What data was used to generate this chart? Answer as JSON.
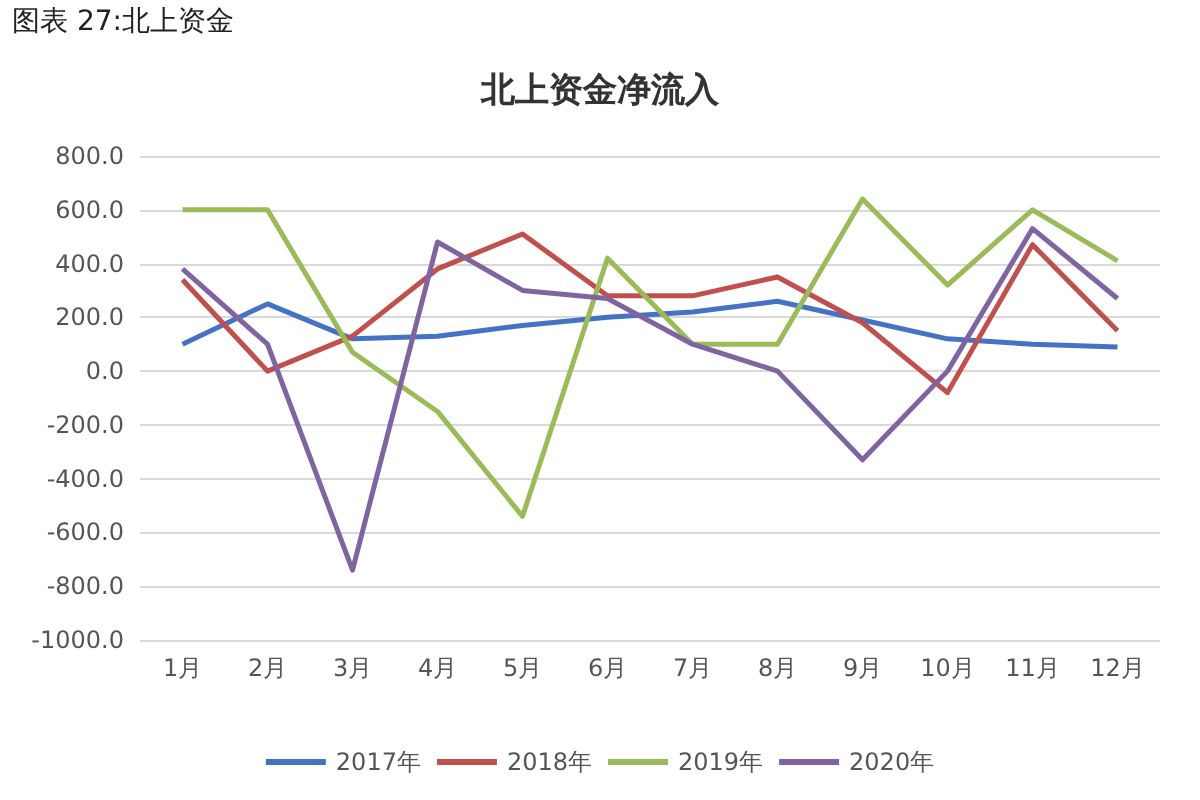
{
  "chart_data": {
    "type": "line",
    "title": "北上资金净流入",
    "annotations": [
      "图表 27:北上资金"
    ],
    "categories": [
      "1月",
      "2月",
      "3月",
      "4月",
      "5月",
      "6月",
      "7月",
      "8月",
      "9月",
      "10月",
      "11月",
      "12月"
    ],
    "series": [
      {
        "name": "2017年",
        "color": "#4472c4",
        "values": [
          100,
          250,
          120,
          130,
          170,
          200,
          220,
          260,
          190,
          120,
          100,
          90
        ]
      },
      {
        "name": "2018年",
        "color": "#c0504d",
        "values": [
          340,
          0,
          130,
          380,
          510,
          280,
          280,
          350,
          180,
          -80,
          470,
          150
        ]
      },
      {
        "name": "2019年",
        "color": "#9bbb59",
        "values": [
          600,
          600,
          70,
          -150,
          -540,
          420,
          100,
          100,
          640,
          320,
          600,
          410
        ]
      },
      {
        "name": "2020年",
        "color": "#8064a2",
        "values": [
          380,
          100,
          -740,
          480,
          300,
          270,
          100,
          0,
          -330,
          0,
          530,
          270
        ]
      }
    ],
    "ylim": [
      -1000,
      800
    ],
    "yticks": [
      {
        "value": -1000,
        "label": "-1000.0"
      },
      {
        "value": -800,
        "label": "-800.0"
      },
      {
        "value": -600,
        "label": "-600.0"
      },
      {
        "value": -400,
        "label": "-400.0"
      },
      {
        "value": -200,
        "label": "-200.0"
      },
      {
        "value": 0,
        "label": "0.0"
      },
      {
        "value": 200,
        "label": "200.0"
      },
      {
        "value": 400,
        "label": "400.0"
      },
      {
        "value": 600,
        "label": "600.0"
      },
      {
        "value": 800,
        "label": "800.0"
      }
    ],
    "grid": "y",
    "legend": "bottom",
    "marker": "none",
    "line_style": "solid"
  }
}
